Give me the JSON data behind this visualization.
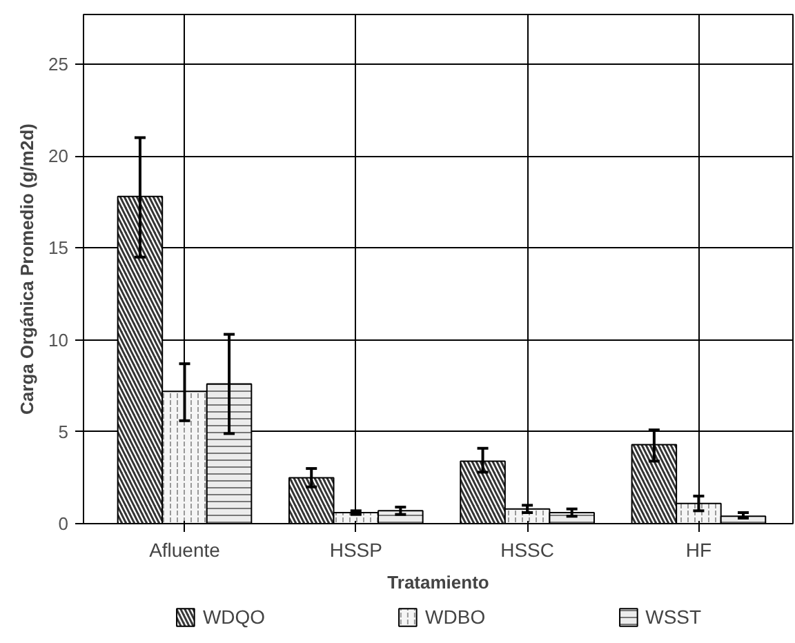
{
  "chart_data": {
    "type": "bar",
    "xlabel": "Tratamiento",
    "ylabel": "Carga Orgánica Promedio (g/m2d)",
    "categories": [
      "Afluente",
      "HSSP",
      "HSSC",
      "HF"
    ],
    "series": [
      {
        "name": "WDQO",
        "color": "#333333",
        "values": [
          17.8,
          2.5,
          3.4,
          4.3
        ],
        "errors": [
          [
            14.5,
            21.0
          ],
          [
            2.0,
            3.0
          ],
          [
            2.8,
            4.1
          ],
          [
            3.4,
            5.1
          ]
        ]
      },
      {
        "name": "WDBO",
        "color": "#f5f5f5",
        "values": [
          7.2,
          0.6,
          0.8,
          1.1
        ],
        "errors": [
          [
            5.6,
            8.7
          ],
          [
            0.5,
            0.7
          ],
          [
            0.6,
            1.0
          ],
          [
            0.7,
            1.5
          ]
        ]
      },
      {
        "name": "WSST",
        "color": "#ececec",
        "values": [
          7.6,
          0.7,
          0.6,
          0.4
        ],
        "errors": [
          [
            4.9,
            10.3
          ],
          [
            0.5,
            0.9
          ],
          [
            0.4,
            0.8
          ],
          [
            0.3,
            0.6
          ]
        ]
      }
    ],
    "ylim": [
      0,
      27.7
    ],
    "yticks": [
      0,
      5,
      10,
      15,
      20,
      25
    ],
    "grid": true,
    "legend": "bottom"
  }
}
